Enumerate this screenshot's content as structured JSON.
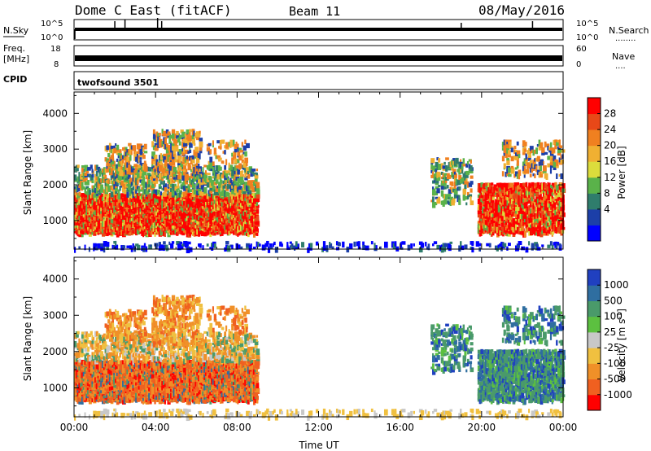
{
  "header": {
    "station": "Dome C East (fitACF)",
    "beam": "Beam 11",
    "date": "08/May/2016"
  },
  "panel_labels": {
    "nsky": "N.Sky",
    "nsearch": "N.Search",
    "nsearch_dots": "........",
    "freq_1": "Freq.",
    "freq_2": "[MHz]",
    "nave": "Nave",
    "nave_dots": "....",
    "cpid": "CPID",
    "cpid_value": "twofsound 3501"
  },
  "chart_data": [
    {
      "type": "line",
      "name": "noise",
      "left_ticks": [
        "10^5",
        "10^0"
      ],
      "right_ticks": [
        "10^5",
        "10^0"
      ]
    },
    {
      "type": "line",
      "name": "frequency",
      "left_ticks": [
        "18",
        "8"
      ],
      "right_ticks": [
        "60",
        "0"
      ]
    },
    {
      "type": "heatmap",
      "name": "power",
      "xlabel": "",
      "ylabel": "Slant Range [km]",
      "yticks": [
        "4000",
        "3000",
        "2000",
        "1000"
      ],
      "ylim": [
        200,
        4600
      ],
      "colorbar_label": "Power [dB]",
      "colorbar_ticks": [
        "28",
        "24",
        "20",
        "16",
        "12",
        "8",
        "4"
      ],
      "colors": [
        "#0000ff",
        "#1c3fa8",
        "#2f7d6c",
        "#5ab24a",
        "#dcdc3c",
        "#f0b032",
        "#f08020",
        "#e84818",
        "#ff0000"
      ]
    },
    {
      "type": "heatmap",
      "name": "velocity",
      "xlabel": "Time UT",
      "ylabel": "Slant Range [km]",
      "xticks": [
        "00:00",
        "04:00",
        "08:00",
        "12:00",
        "16:00",
        "20:00",
        "00:00"
      ],
      "yticks": [
        "4000",
        "3000",
        "2000",
        "1000"
      ],
      "ylim": [
        200,
        4600
      ],
      "colorbar_label_main": "Velocity [m s",
      "colorbar_label_sup": "-1",
      "colorbar_label_end": "]",
      "colorbar_ticks": [
        "1000",
        "500",
        "100",
        "25",
        "-25",
        "-100",
        "-500",
        "-1000"
      ],
      "colors": [
        "#2040c0",
        "#2f6ea0",
        "#4a9a6a",
        "#5cc040",
        "#c8c8c8",
        "#f0c040",
        "#f09028",
        "#f06020",
        "#ff0000"
      ]
    }
  ]
}
